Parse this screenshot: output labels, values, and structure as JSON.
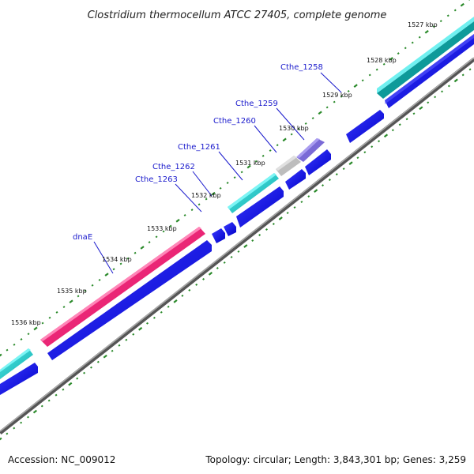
{
  "title": "Clostridium thermocellum ATCC 27405, complete genome",
  "accession": "Accession: NC_009012",
  "summary": "Topology: circular; Length: 3,843,301 bp; Genes: 3,259",
  "colors": {
    "cds": "#0a0ad9",
    "rna": "#19c4c4",
    "dnaE": "#e8186e",
    "purple": "#6a5acd",
    "grey": "#c0c0c0",
    "backbone": "#7a7a7a",
    "ticks": "#2a8a2a",
    "labels": "#1a1acc"
  },
  "ticks": [
    {
      "label": "1527 kbp",
      "kbp": 1527
    },
    {
      "label": "1528 kbp",
      "kbp": 1528
    },
    {
      "label": "1529 kbp",
      "kbp": 1529
    },
    {
      "label": "1530 kbp",
      "kbp": 1530
    },
    {
      "label": "1531 kbp",
      "kbp": 1531
    },
    {
      "label": "1532 kbp",
      "kbp": 1532
    },
    {
      "label": "1533 kbp",
      "kbp": 1533
    },
    {
      "label": "1534 kbp",
      "kbp": 1534
    },
    {
      "label": "1535 kbp",
      "kbp": 1535
    },
    {
      "label": "1536 kbp",
      "kbp": 1536
    }
  ],
  "genes": [
    {
      "label": "Cthe_1258"
    },
    {
      "label": "Cthe_1259"
    },
    {
      "label": "Cthe_1260"
    },
    {
      "label": "Cthe_1261"
    },
    {
      "label": "Cthe_1262"
    },
    {
      "label": "Cthe_1263"
    },
    {
      "label": "dnaE"
    }
  ]
}
